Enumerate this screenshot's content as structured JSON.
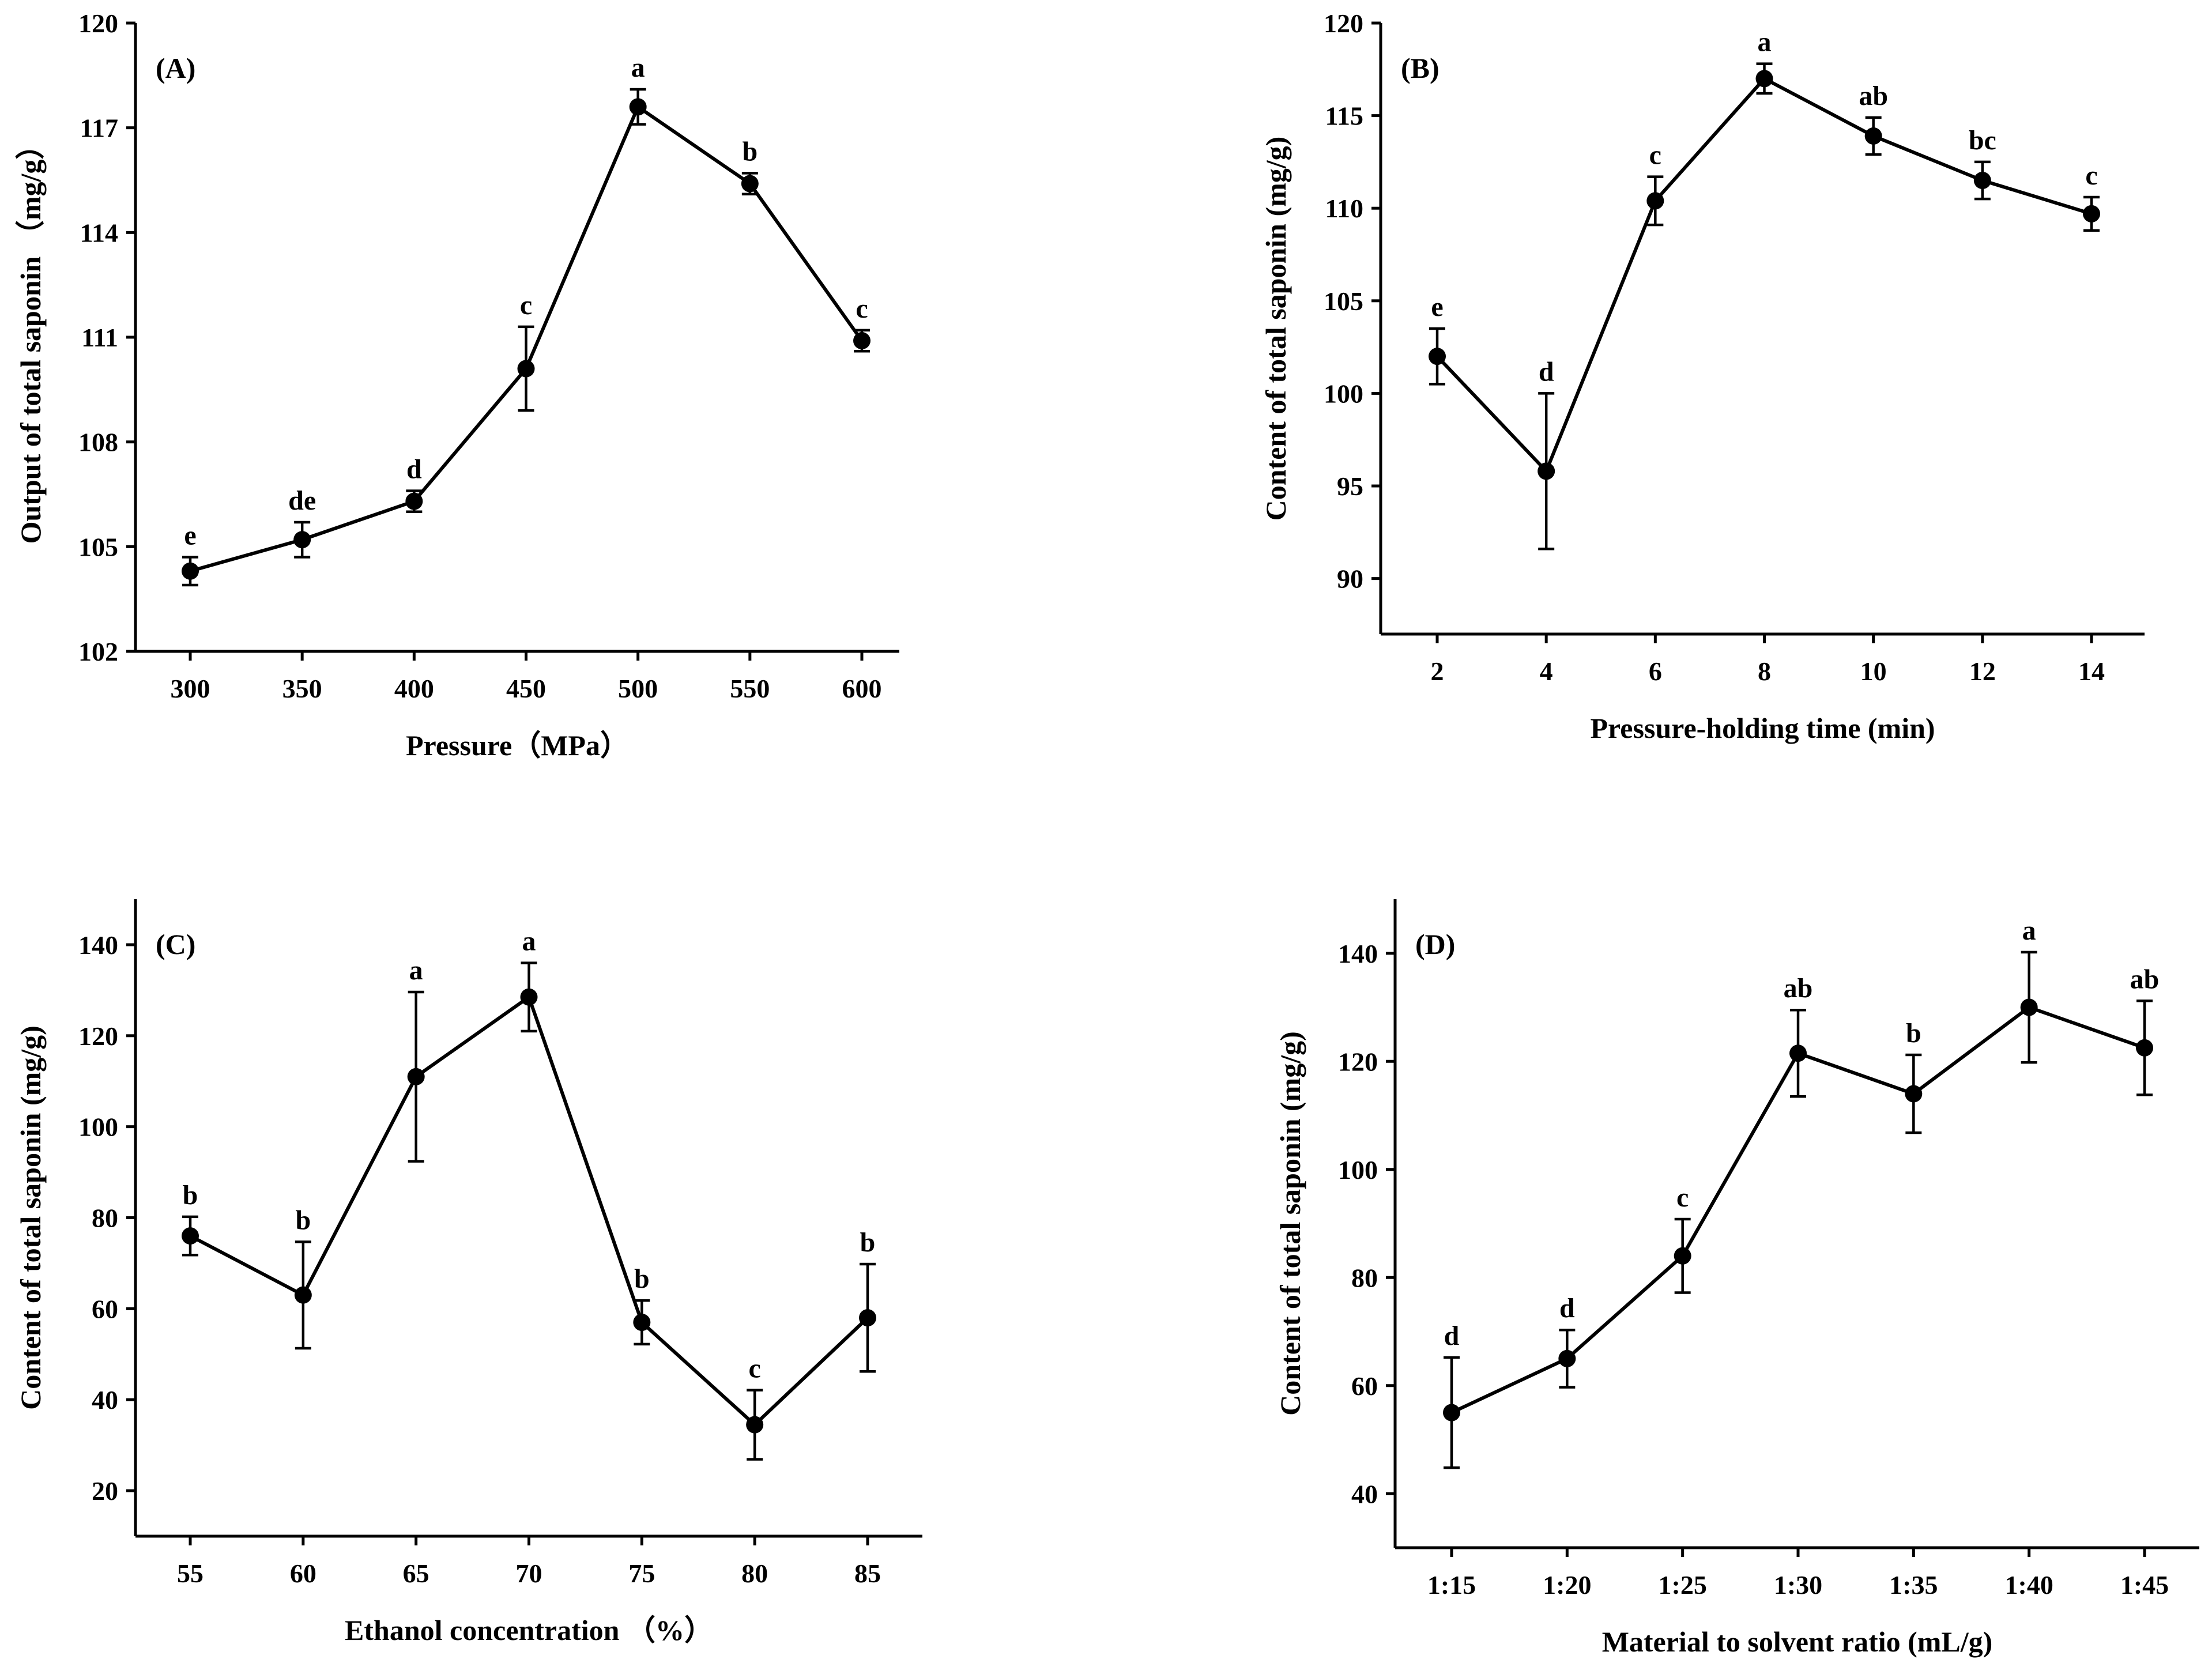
{
  "chart_data": [
    {
      "type": "line",
      "panel_label": "(A)",
      "xlabel": "Pressure（MPa）",
      "ylabel": "Output of total saponin （mg/g）",
      "categories": [
        "300",
        "350",
        "400",
        "450",
        "500",
        "550",
        "600"
      ],
      "ylim": [
        102,
        120
      ],
      "yticks": [
        102,
        105,
        108,
        111,
        114,
        117,
        120
      ],
      "yticks_text": [
        "102",
        "105",
        "108",
        "111",
        "114",
        "117",
        "120"
      ],
      "series": [
        {
          "values": [
            104.3,
            105.2,
            106.3,
            110.1,
            117.6,
            115.4,
            110.9
          ],
          "errors": [
            0.4,
            0.5,
            0.3,
            1.2,
            0.5,
            0.3,
            0.3
          ],
          "sig_labels": [
            "e",
            "de",
            "d",
            "c",
            "a",
            "b",
            "c"
          ]
        }
      ]
    },
    {
      "type": "line",
      "panel_label": "(B)",
      "xlabel": "Pressure-holding time (min)",
      "ylabel": "Content of total saponin (mg/g)",
      "categories": [
        "2",
        "4",
        "6",
        "8",
        "10",
        "12",
        "14"
      ],
      "ylim": [
        87,
        120
      ],
      "yticks": [
        90,
        95,
        100,
        105,
        110,
        115,
        120
      ],
      "yticks_text": [
        "90",
        "95",
        "100",
        "105",
        "110",
        "115",
        "120"
      ],
      "series": [
        {
          "values": [
            102.0,
            95.8,
            110.4,
            117.0,
            113.9,
            111.5,
            109.7
          ],
          "errors": [
            1.5,
            4.2,
            1.3,
            0.8,
            1.0,
            1.0,
            0.9
          ],
          "sig_labels": [
            "e",
            "d",
            "c",
            "a",
            "ab",
            "bc",
            "c"
          ]
        }
      ]
    },
    {
      "type": "line",
      "panel_label": "(C)",
      "xlabel": "Ethanol concentration （%）",
      "ylabel": "Content of total saponin (mg/g)",
      "categories": [
        "55",
        "60",
        "65",
        "70",
        "75",
        "80",
        "85"
      ],
      "ylim": [
        10,
        150
      ],
      "yticks": [
        20,
        40,
        60,
        80,
        100,
        120,
        140
      ],
      "yticks_text": [
        "20",
        "40",
        "60",
        "80",
        "100",
        "120",
        "140"
      ],
      "series": [
        {
          "values": [
            76,
            63,
            111,
            128.5,
            57,
            34.5,
            58
          ],
          "errors": [
            4.2,
            11.7,
            18.6,
            7.5,
            4.8,
            7.6,
            11.8
          ],
          "sig_labels": [
            "b",
            "b",
            "a",
            "a",
            "b",
            "c",
            "b"
          ]
        }
      ]
    },
    {
      "type": "line",
      "panel_label": "(D)",
      "xlabel": "Material to solvent ratio (mL/g)",
      "ylabel": "Content of total saponin (mg/g)",
      "categories": [
        "1:15",
        "1:20",
        "1:25",
        "1:30",
        "1:35",
        "1:40",
        "1:45"
      ],
      "ylim": [
        30,
        150
      ],
      "yticks": [
        40,
        60,
        80,
        100,
        120,
        140
      ],
      "yticks_text": [
        "40",
        "60",
        "80",
        "100",
        "120",
        "140"
      ],
      "series": [
        {
          "values": [
            55,
            65,
            84,
            121.5,
            114,
            130,
            122.5
          ],
          "errors": [
            10.2,
            5.3,
            6.8,
            8.0,
            7.2,
            10.2,
            8.7
          ],
          "sig_labels": [
            "d",
            "d",
            "c",
            "ab",
            "b",
            "a",
            "ab"
          ]
        }
      ]
    }
  ]
}
